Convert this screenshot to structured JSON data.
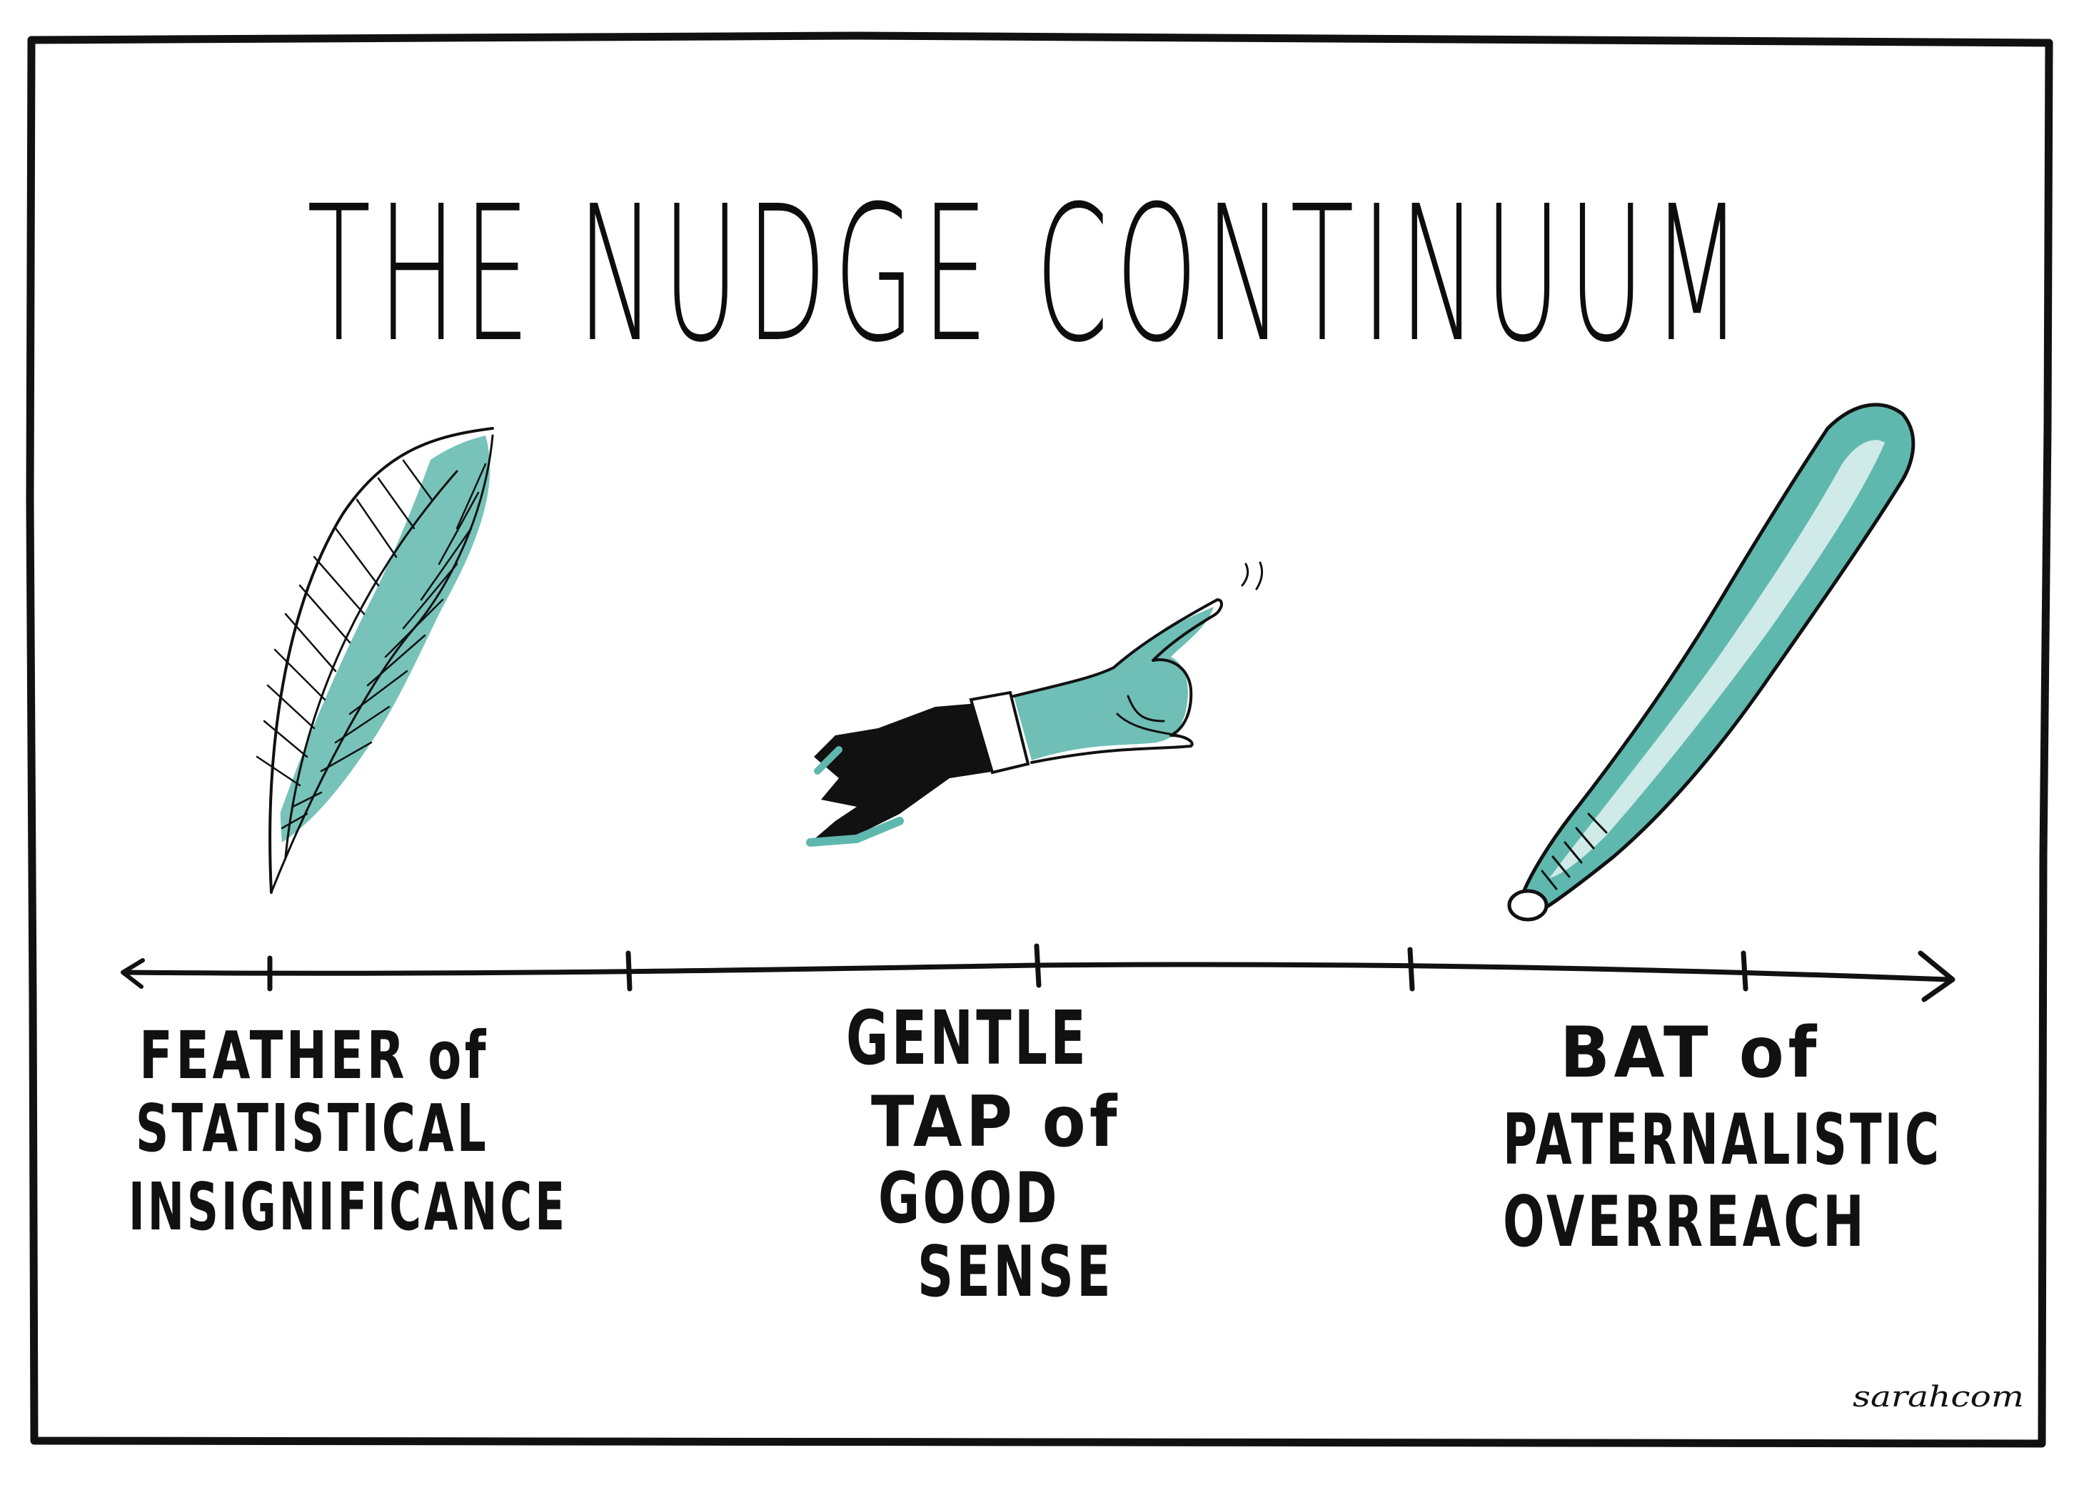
{
  "title": "THE NUDGE CONTINUUM",
  "labels": {
    "left": [
      "FEATHER of",
      "STATISTICAL",
      "INSIGNIFICANCE"
    ],
    "middle": [
      "GENTLE",
      "TAP of",
      "GOOD",
      "SENSE"
    ],
    "right": [
      "BAT of",
      "PATERNALISTIC",
      "OVERREACH"
    ]
  },
  "credit": "sarahcom",
  "colors": {
    "ink": "#111111",
    "accent": "#5fb8ae",
    "background": "#ffffff"
  },
  "icons": {
    "left": "feather-icon",
    "middle": "pointing-hand-icon",
    "right": "baseball-bat-icon"
  }
}
